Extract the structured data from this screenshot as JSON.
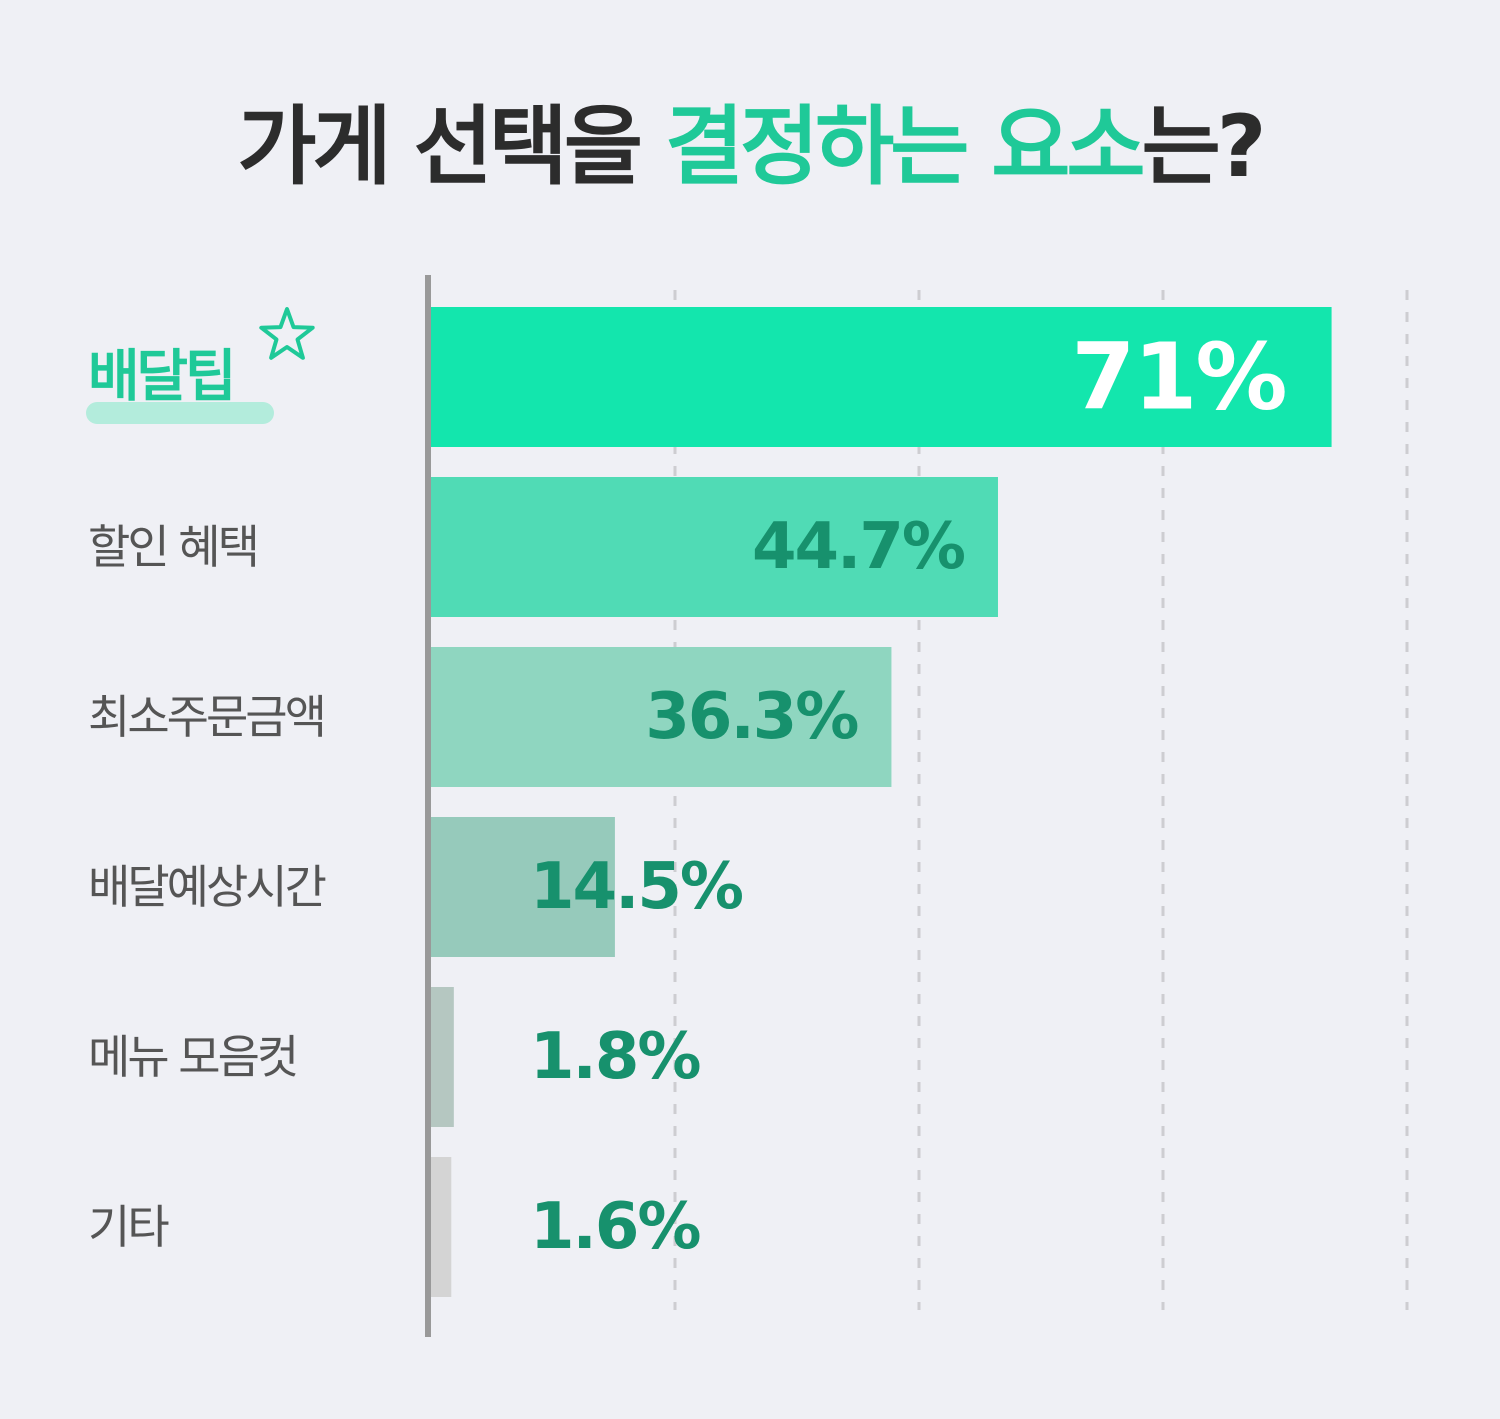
{
  "title": {
    "part1": "가게 선택을 ",
    "part2": "결정하는 요소",
    "part3": "는?"
  },
  "colors": {
    "background": "#eff0f5",
    "accent": "#1fc998",
    "value_text": "#17916d"
  },
  "chart_data": {
    "type": "bar",
    "orientation": "horizontal",
    "title": "가게 선택을 결정하는 요소는?",
    "categories": [
      "배달팁",
      "할인 혜택",
      "최소주문금액",
      "배달예상시간",
      "메뉴 모음컷",
      "기타"
    ],
    "values": [
      71,
      44.7,
      36.3,
      14.5,
      1.8,
      1.6
    ],
    "value_labels": [
      "71%",
      "44.7%",
      "36.3%",
      "14.5%",
      "1.8%",
      "1.6%"
    ],
    "bar_colors": [
      "#13e6ad",
      "#50dbb5",
      "#8fd6c0",
      "#96cabb",
      "#b5c7c1",
      "#d4d4d4"
    ],
    "xlim": [
      0,
      76
    ],
    "grid": true,
    "legend": "none",
    "highlight_index": 0
  }
}
